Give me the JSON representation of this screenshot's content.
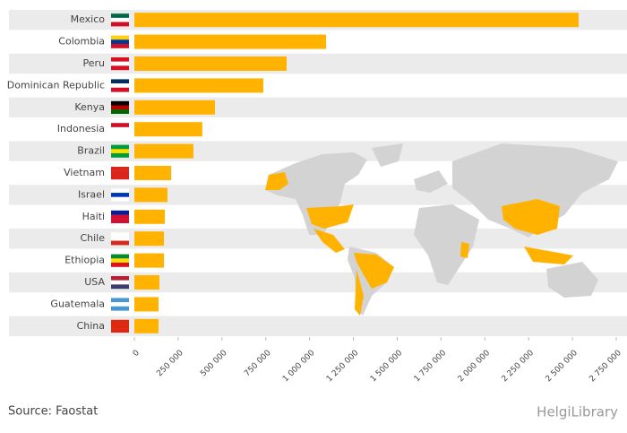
{
  "chart_data": {
    "type": "bar",
    "orientation": "horizontal",
    "categories": [
      "Mexico",
      "Colombia",
      "Peru",
      "Dominican Republic",
      "Kenya",
      "Indonesia",
      "Brazil",
      "Vietnam",
      "Israel",
      "Haiti",
      "Chile",
      "Ethiopia",
      "USA",
      "Guatemala",
      "China"
    ],
    "values": [
      2535000,
      1094000,
      869000,
      736000,
      460000,
      388000,
      337000,
      210000,
      189000,
      174000,
      169000,
      169000,
      143000,
      138000,
      138000
    ],
    "color": "#ffb300",
    "xlim": [
      0,
      2750000
    ],
    "xticks": [
      0,
      {
        "value": 250000,
        "label": "250 000"
      },
      {
        "value": 500000,
        "label": "500 000"
      },
      {
        "value": 750000,
        "label": "750 000"
      },
      {
        "value": 1000000,
        "label": "1 000 000"
      },
      {
        "value": 1250000,
        "label": "1 250 000"
      },
      {
        "value": 1500000,
        "label": "1 500 000"
      },
      {
        "value": 1750000,
        "label": "1 750 000"
      },
      {
        "value": 2000000,
        "label": "2 000 000"
      },
      {
        "value": 2250000,
        "label": "2 250 000"
      },
      {
        "value": 2500000,
        "label": "2 500 000"
      },
      {
        "value": 2750000,
        "label": "2 750 000"
      }
    ],
    "source": "Source: Faostat",
    "logo": "HelgiLibrary"
  }
}
